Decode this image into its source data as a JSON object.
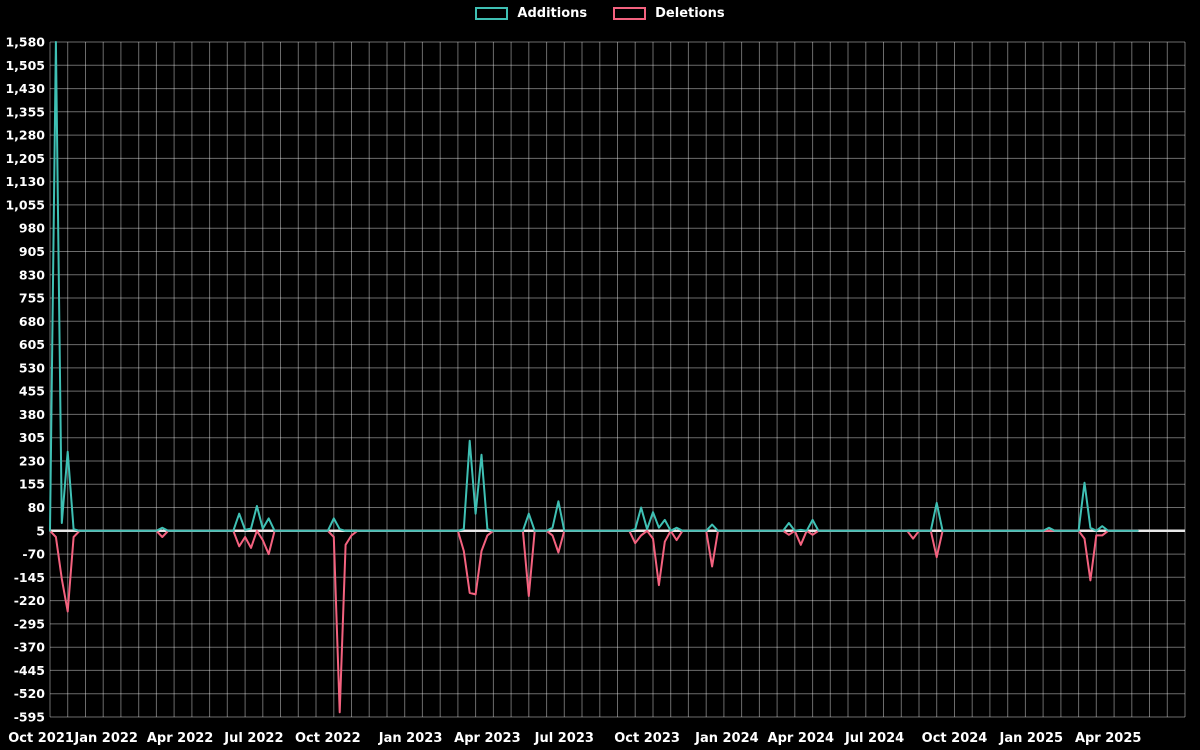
{
  "page": {
    "background": "#000000",
    "text_color": "#ffffff"
  },
  "chart_data": {
    "type": "line",
    "title": "",
    "legend_position": "top-center",
    "baseline_value": 5,
    "weeks_total": 184,
    "weeks_span": 192,
    "grid": {
      "on": true,
      "color": "rgba(255,255,255,0.42)",
      "vline_step_weeks": 3,
      "zero_line_color": "#e8e8e8"
    },
    "y_axis": {
      "min": -595,
      "max": 1580,
      "tick_step": 75,
      "zero_line_value": 5,
      "ticks": [
        1580,
        1505,
        1430,
        1355,
        1280,
        1205,
        1130,
        1055,
        980,
        905,
        830,
        755,
        680,
        605,
        530,
        455,
        380,
        305,
        230,
        155,
        80,
        5,
        -70,
        -145,
        -220,
        -295,
        -370,
        -445,
        -520,
        -595
      ]
    },
    "x_axis": {
      "tick_labels": [
        "Oct 2021",
        "Jan 2022",
        "Apr 2022",
        "Jul 2022",
        "Oct 2022",
        "Jan 2023",
        "Apr 2023",
        "Jul 2023",
        "Oct 2023",
        "Jan 2024",
        "Apr 2024",
        "Jul 2024",
        "Oct 2024",
        "Jan 2025",
        "Apr 2025"
      ],
      "tick_weeks": [
        -1.5,
        9.5,
        22,
        34.5,
        47,
        61,
        74,
        87,
        101,
        114.5,
        127,
        139.5,
        153,
        166,
        179
      ]
    },
    "series": [
      {
        "name": "Additions",
        "color": "#3fc0b4",
        "points": [
          [
            1,
            1580
          ],
          [
            2,
            30
          ],
          [
            3,
            260
          ],
          [
            4,
            10
          ],
          [
            19,
            15
          ],
          [
            32,
            60
          ],
          [
            33,
            8
          ],
          [
            34,
            12
          ],
          [
            35,
            85
          ],
          [
            36,
            12
          ],
          [
            37,
            45
          ],
          [
            48,
            45
          ],
          [
            49,
            10
          ],
          [
            70,
            10
          ],
          [
            71,
            295
          ],
          [
            72,
            60
          ],
          [
            73,
            250
          ],
          [
            74,
            10
          ],
          [
            81,
            60
          ],
          [
            85,
            15
          ],
          [
            86,
            100
          ],
          [
            99,
            10
          ],
          [
            100,
            80
          ],
          [
            101,
            10
          ],
          [
            102,
            65
          ],
          [
            103,
            15
          ],
          [
            104,
            40
          ],
          [
            106,
            15
          ],
          [
            112,
            25
          ],
          [
            125,
            30
          ],
          [
            127,
            8
          ],
          [
            129,
            40
          ],
          [
            150,
            95
          ],
          [
            169,
            15
          ],
          [
            175,
            160
          ],
          [
            176,
            15
          ],
          [
            178,
            20
          ]
        ]
      },
      {
        "name": "Deletions",
        "color": "#f4627f",
        "points": [
          [
            1,
            -15
          ],
          [
            2,
            -150
          ],
          [
            3,
            -255
          ],
          [
            4,
            -15
          ],
          [
            19,
            -15
          ],
          [
            32,
            -45
          ],
          [
            33,
            -15
          ],
          [
            34,
            -50
          ],
          [
            36,
            -25
          ],
          [
            37,
            -70
          ],
          [
            48,
            -15
          ],
          [
            49,
            -580
          ],
          [
            50,
            -40
          ],
          [
            51,
            -10
          ],
          [
            70,
            -60
          ],
          [
            71,
            -195
          ],
          [
            72,
            -200
          ],
          [
            73,
            -60
          ],
          [
            74,
            -10
          ],
          [
            81,
            -205
          ],
          [
            85,
            -10
          ],
          [
            86,
            -65
          ],
          [
            99,
            -35
          ],
          [
            100,
            -10
          ],
          [
            102,
            -20
          ],
          [
            103,
            -170
          ],
          [
            104,
            -30
          ],
          [
            106,
            -25
          ],
          [
            112,
            -110
          ],
          [
            125,
            -8
          ],
          [
            127,
            -40
          ],
          [
            129,
            -8
          ],
          [
            146,
            -20
          ],
          [
            150,
            -80
          ],
          [
            175,
            -20
          ],
          [
            176,
            -155
          ],
          [
            177,
            -10
          ],
          [
            178,
            -10
          ]
        ]
      }
    ]
  }
}
